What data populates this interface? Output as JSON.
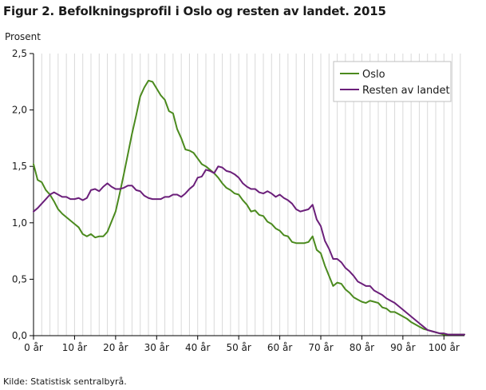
{
  "figure": {
    "title": "Figur 2. Befolkningsprofil i Oslo og resten av landet. 2015",
    "source": "Kilde: Statistisk sentralbyrå."
  },
  "chart_data": {
    "type": "line",
    "title": "Figur 2. Befolkningsprofil i Oslo og resten av landet. 2015",
    "ylabel": "Prosent",
    "xlabel": "",
    "xlim": [
      0,
      105
    ],
    "ylim": [
      0,
      2.5
    ],
    "x_ticks": [
      {
        "value": 0,
        "label": "0 år"
      },
      {
        "value": 10,
        "label": "10 år"
      },
      {
        "value": 20,
        "label": "20 år"
      },
      {
        "value": 30,
        "label": "30 år"
      },
      {
        "value": 40,
        "label": "40 år"
      },
      {
        "value": 50,
        "label": "50 år"
      },
      {
        "value": 60,
        "label": "60 år"
      },
      {
        "value": 70,
        "label": "70 år"
      },
      {
        "value": 80,
        "label": "80 år"
      },
      {
        "value": 90,
        "label": "90 år"
      },
      {
        "value": 100,
        "label": "100 år"
      }
    ],
    "y_ticks": [
      {
        "value": 0,
        "label": "0,0"
      },
      {
        "value": 0.5,
        "label": "0,5"
      },
      {
        "value": 1.0,
        "label": "1,0"
      },
      {
        "value": 1.5,
        "label": "1,5"
      },
      {
        "value": 2.0,
        "label": "2,0"
      },
      {
        "value": 2.5,
        "label": "2,5"
      }
    ],
    "grid": {
      "vertical": true,
      "horizontal": false,
      "color": "#d9d9d9"
    },
    "legend_position": "top-right",
    "x": [
      0,
      1,
      2,
      3,
      4,
      5,
      6,
      7,
      8,
      9,
      10,
      11,
      12,
      13,
      14,
      15,
      16,
      17,
      18,
      19,
      20,
      21,
      22,
      23,
      24,
      25,
      26,
      27,
      28,
      29,
      30,
      31,
      32,
      33,
      34,
      35,
      36,
      37,
      38,
      39,
      40,
      41,
      42,
      43,
      44,
      45,
      46,
      47,
      48,
      49,
      50,
      51,
      52,
      53,
      54,
      55,
      56,
      57,
      58,
      59,
      60,
      61,
      62,
      63,
      64,
      65,
      66,
      67,
      68,
      69,
      70,
      71,
      72,
      73,
      74,
      75,
      76,
      77,
      78,
      79,
      80,
      81,
      82,
      83,
      84,
      85,
      86,
      87,
      88,
      89,
      90,
      91,
      92,
      93,
      94,
      95,
      96,
      97,
      98,
      99,
      100,
      101,
      102,
      103,
      104,
      105
    ],
    "series": [
      {
        "name": "Oslo",
        "color": "#4b8a1e",
        "values": [
          1.52,
          1.38,
          1.36,
          1.29,
          1.25,
          1.19,
          1.12,
          1.08,
          1.05,
          1.02,
          0.99,
          0.96,
          0.9,
          0.88,
          0.9,
          0.87,
          0.88,
          0.88,
          0.92,
          1.01,
          1.1,
          1.26,
          1.43,
          1.61,
          1.79,
          1.95,
          2.12,
          2.2,
          2.26,
          2.25,
          2.19,
          2.13,
          2.09,
          1.99,
          1.97,
          1.83,
          1.75,
          1.65,
          1.64,
          1.62,
          1.57,
          1.52,
          1.5,
          1.47,
          1.44,
          1.4,
          1.35,
          1.31,
          1.29,
          1.26,
          1.25,
          1.2,
          1.16,
          1.1,
          1.11,
          1.07,
          1.06,
          1.01,
          0.99,
          0.95,
          0.93,
          0.89,
          0.88,
          0.83,
          0.82,
          0.82,
          0.82,
          0.83,
          0.88,
          0.76,
          0.73,
          0.62,
          0.53,
          0.44,
          0.47,
          0.46,
          0.41,
          0.38,
          0.34,
          0.32,
          0.3,
          0.29,
          0.31,
          0.3,
          0.29,
          0.25,
          0.24,
          0.21,
          0.21,
          0.19,
          0.17,
          0.15,
          0.12,
          0.1,
          0.08,
          0.06,
          0.05,
          0.04,
          0.03,
          0.02,
          0.01,
          0.01,
          0.01,
          0.01,
          0.01,
          0.01
        ]
      },
      {
        "name": "Resten av landet",
        "color": "#6b1f7a",
        "values": [
          1.1,
          1.13,
          1.17,
          1.21,
          1.25,
          1.27,
          1.25,
          1.23,
          1.23,
          1.21,
          1.21,
          1.22,
          1.2,
          1.22,
          1.29,
          1.3,
          1.28,
          1.32,
          1.35,
          1.32,
          1.3,
          1.3,
          1.31,
          1.33,
          1.33,
          1.29,
          1.28,
          1.24,
          1.22,
          1.21,
          1.21,
          1.21,
          1.23,
          1.23,
          1.25,
          1.25,
          1.23,
          1.26,
          1.3,
          1.33,
          1.4,
          1.41,
          1.47,
          1.46,
          1.44,
          1.5,
          1.49,
          1.46,
          1.45,
          1.43,
          1.4,
          1.35,
          1.32,
          1.3,
          1.3,
          1.27,
          1.26,
          1.28,
          1.26,
          1.23,
          1.25,
          1.22,
          1.2,
          1.17,
          1.12,
          1.1,
          1.11,
          1.12,
          1.16,
          1.03,
          0.97,
          0.84,
          0.77,
          0.68,
          0.68,
          0.65,
          0.6,
          0.57,
          0.53,
          0.48,
          0.46,
          0.44,
          0.44,
          0.4,
          0.38,
          0.36,
          0.33,
          0.31,
          0.29,
          0.26,
          0.23,
          0.2,
          0.17,
          0.14,
          0.11,
          0.08,
          0.05,
          0.04,
          0.03,
          0.02,
          0.02,
          0.01,
          0.01,
          0.01,
          0.01,
          0.01
        ]
      }
    ]
  }
}
